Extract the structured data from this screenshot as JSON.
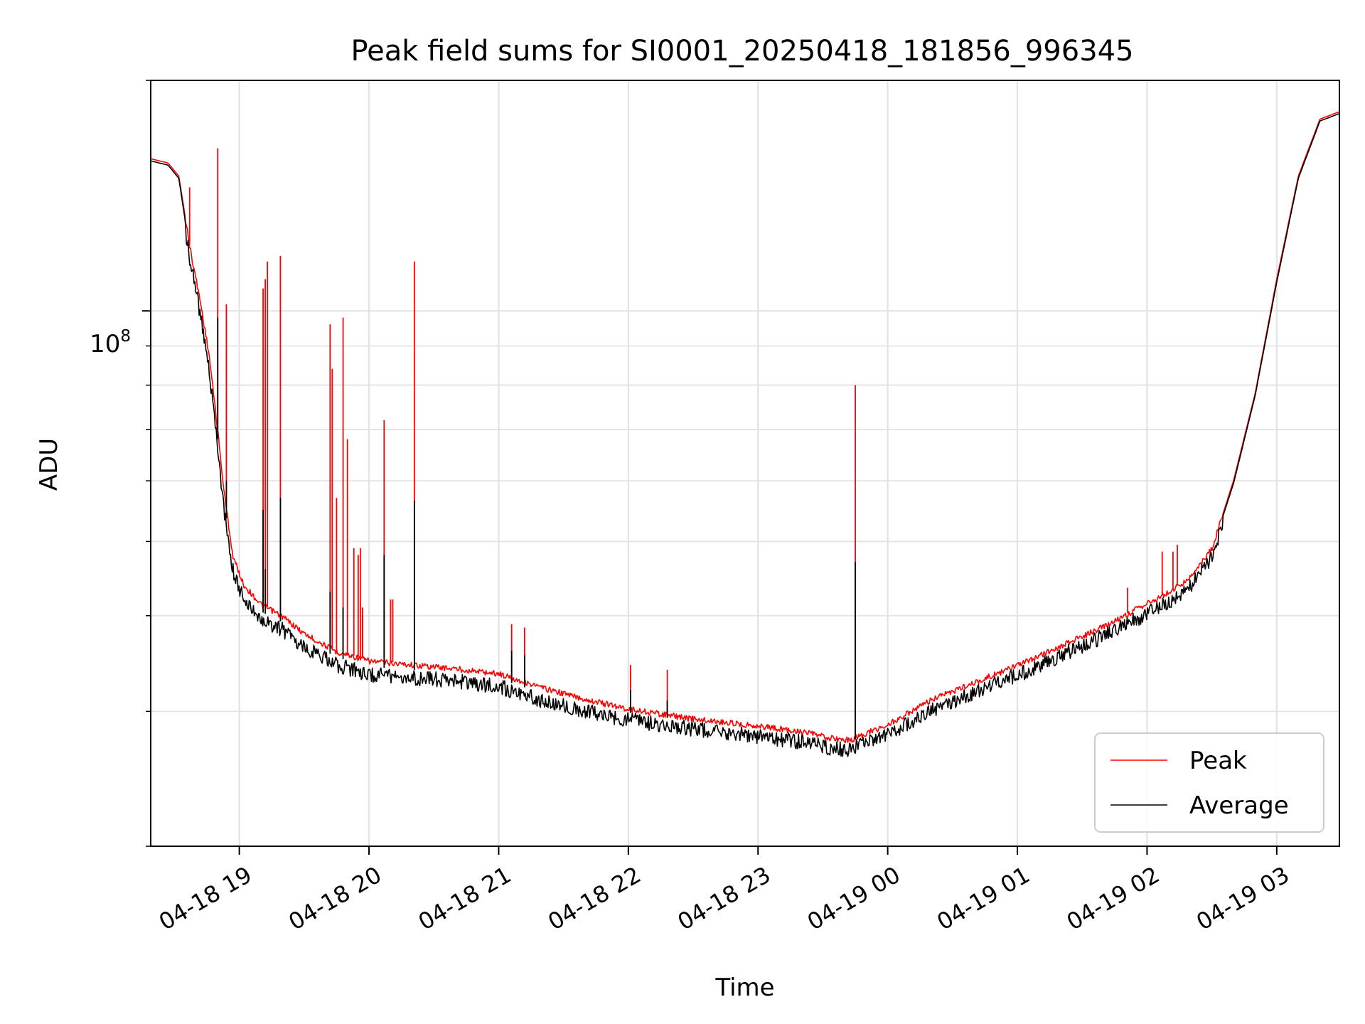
{
  "chart_data": {
    "type": "line",
    "title": "Peak field sums for SI0001_20250418_181856_996345",
    "xlabel": "Time",
    "ylabel": "ADU",
    "y_scale": "log",
    "ylim": [
      20000000,
      200000000
    ],
    "xlim": [
      "2025-04-18T18:19",
      "2025-04-19T03:29"
    ],
    "x_tick_labels": [
      "04-18 19",
      "04-18 20",
      "04-18 21",
      "04-18 22",
      "04-18 23",
      "04-19 00",
      "04-19 01",
      "04-19 02",
      "04-19 03"
    ],
    "x_tick_values": [
      "2025-04-18T19:00",
      "2025-04-18T20:00",
      "2025-04-18T21:00",
      "2025-04-18T22:00",
      "2025-04-18T23:00",
      "2025-04-19T00:00",
      "2025-04-19T01:00",
      "2025-04-19T02:00",
      "2025-04-19T03:00"
    ],
    "y_major_tick_label": "10",
    "y_major_tick_exponent": "8",
    "grid": true,
    "legend_position": "lower right",
    "series": [
      {
        "name": "Peak",
        "color": "#ff0000",
        "points": [
          [
            "2025-04-18T18:19",
            158000000
          ],
          [
            "2025-04-18T18:27",
            156000000
          ],
          [
            "2025-04-18T18:32",
            150000000
          ],
          [
            "2025-04-18T18:37",
            122000000
          ],
          [
            "2025-04-18T18:42",
            103000000
          ],
          [
            "2025-04-18T18:46",
            88000000
          ],
          [
            "2025-04-18T18:50",
            70000000
          ],
          [
            "2025-04-18T18:53",
            58000000
          ],
          [
            "2025-04-18T18:57",
            48000000
          ],
          [
            "2025-04-18T19:02",
            44000000
          ],
          [
            "2025-04-18T19:10",
            41500000
          ],
          [
            "2025-04-18T19:20",
            40000000
          ],
          [
            "2025-04-18T19:30",
            38000000
          ],
          [
            "2025-04-18T19:45",
            36000000
          ],
          [
            "2025-04-18T20:00",
            35000000
          ],
          [
            "2025-04-18T20:20",
            34600000
          ],
          [
            "2025-04-18T20:40",
            34200000
          ],
          [
            "2025-04-18T21:00",
            33700000
          ],
          [
            "2025-04-18T21:20",
            32300000
          ],
          [
            "2025-04-18T21:40",
            31200000
          ],
          [
            "2025-04-18T22:00",
            30300000
          ],
          [
            "2025-04-18T22:30",
            29400000
          ],
          [
            "2025-04-18T23:00",
            28800000
          ],
          [
            "2025-04-18T23:20",
            28300000
          ],
          [
            "2025-04-18T23:35",
            27700000
          ],
          [
            "2025-04-18T23:43",
            27600000
          ],
          [
            "2025-04-18T23:48",
            28000000
          ],
          [
            "2025-04-19T00:00",
            28900000
          ],
          [
            "2025-04-19T00:20",
            31100000
          ],
          [
            "2025-04-19T00:40",
            32800000
          ],
          [
            "2025-04-19T01:00",
            34500000
          ],
          [
            "2025-04-19T01:20",
            36600000
          ],
          [
            "2025-04-19T01:40",
            38800000
          ],
          [
            "2025-04-19T02:00",
            41600000
          ],
          [
            "2025-04-19T02:10",
            43000000
          ],
          [
            "2025-04-19T02:20",
            45000000
          ],
          [
            "2025-04-19T02:30",
            49000000
          ],
          [
            "2025-04-19T02:40",
            60000000
          ],
          [
            "2025-04-19T02:50",
            78000000
          ],
          [
            "2025-04-19T03:00",
            110000000
          ],
          [
            "2025-04-19T03:10",
            150000000
          ],
          [
            "2025-04-19T03:20",
            178000000
          ],
          [
            "2025-04-19T03:29",
            182000000
          ]
        ],
        "spikes": [
          [
            "2025-04-18T18:37",
            145000000
          ],
          [
            "2025-04-18T18:50",
            163000000
          ],
          [
            "2025-04-18T18:54",
            102000000
          ],
          [
            "2025-04-18T19:11",
            107000000
          ],
          [
            "2025-04-18T19:12",
            110000000
          ],
          [
            "2025-04-18T19:13",
            116000000
          ],
          [
            "2025-04-18T19:19",
            118000000
          ],
          [
            "2025-04-18T19:42",
            96000000
          ],
          [
            "2025-04-18T19:43",
            84000000
          ],
          [
            "2025-04-18T19:45",
            57000000
          ],
          [
            "2025-04-18T19:48",
            98000000
          ],
          [
            "2025-04-18T19:50",
            68000000
          ],
          [
            "2025-04-18T19:53",
            49000000
          ],
          [
            "2025-04-18T19:55",
            48000000
          ],
          [
            "2025-04-18T19:56",
            49000000
          ],
          [
            "2025-04-18T19:57",
            40000000
          ],
          [
            "2025-04-18T19:57",
            41000000
          ],
          [
            "2025-04-18T20:07",
            72000000
          ],
          [
            "2025-04-18T20:10",
            42000000
          ],
          [
            "2025-04-18T20:11",
            42000000
          ],
          [
            "2025-04-18T20:21",
            116000000
          ],
          [
            "2025-04-18T21:06",
            39000000
          ],
          [
            "2025-04-18T21:12",
            38600000
          ],
          [
            "2025-04-18T22:01",
            34500000
          ],
          [
            "2025-04-18T22:18",
            34000000
          ],
          [
            "2025-04-18T23:45",
            80000000
          ],
          [
            "2025-04-19T01:51",
            43500000
          ],
          [
            "2025-04-19T02:07",
            48500000
          ],
          [
            "2025-04-19T02:12",
            48500000
          ],
          [
            "2025-04-19T02:14",
            49500000
          ]
        ]
      },
      {
        "name": "Average",
        "color": "#000000",
        "points": [
          [
            "2025-04-18T18:19",
            157000000
          ],
          [
            "2025-04-18T18:27",
            155000000
          ],
          [
            "2025-04-18T18:32",
            149000000
          ],
          [
            "2025-04-18T18:37",
            120000000
          ],
          [
            "2025-04-18T18:42",
            101000000
          ],
          [
            "2025-04-18T18:46",
            86000000
          ],
          [
            "2025-04-18T18:50",
            68000000
          ],
          [
            "2025-04-18T18:53",
            56000000
          ],
          [
            "2025-04-18T18:57",
            47000000
          ],
          [
            "2025-04-18T19:02",
            43000000
          ],
          [
            "2025-04-18T19:10",
            40500000
          ],
          [
            "2025-04-18T19:20",
            39200000
          ],
          [
            "2025-04-18T19:30",
            37200000
          ],
          [
            "2025-04-18T19:45",
            35300000
          ],
          [
            "2025-04-18T20:00",
            34300000
          ],
          [
            "2025-04-18T20:20",
            34000000
          ],
          [
            "2025-04-18T20:40",
            33600000
          ],
          [
            "2025-04-18T21:00",
            33100000
          ],
          [
            "2025-04-18T21:20",
            31700000
          ],
          [
            "2025-04-18T21:40",
            30700000
          ],
          [
            "2025-04-18T22:00",
            29900000
          ],
          [
            "2025-04-18T22:30",
            29100000
          ],
          [
            "2025-04-18T23:00",
            28500000
          ],
          [
            "2025-04-18T23:20",
            28000000
          ],
          [
            "2025-04-18T23:35",
            27400000
          ],
          [
            "2025-04-18T23:43",
            27400000
          ],
          [
            "2025-04-18T23:48",
            27800000
          ],
          [
            "2025-04-19T00:00",
            28600000
          ],
          [
            "2025-04-19T00:20",
            30700000
          ],
          [
            "2025-04-19T00:40",
            32500000
          ],
          [
            "2025-04-19T01:00",
            34200000
          ],
          [
            "2025-04-19T01:20",
            36300000
          ],
          [
            "2025-04-19T01:40",
            38500000
          ],
          [
            "2025-04-19T02:00",
            41200000
          ],
          [
            "2025-04-19T02:10",
            42600000
          ],
          [
            "2025-04-19T02:20",
            44700000
          ],
          [
            "2025-04-19T02:30",
            48700000
          ],
          [
            "2025-04-19T02:40",
            59500000
          ],
          [
            "2025-04-19T02:50",
            77500000
          ],
          [
            "2025-04-19T03:00",
            109000000
          ],
          [
            "2025-04-19T03:10",
            149000000
          ],
          [
            "2025-04-19T03:20",
            177000000
          ],
          [
            "2025-04-19T03:29",
            181000000
          ]
        ],
        "spikes": [
          [
            "2025-04-18T18:50",
            98000000
          ],
          [
            "2025-04-18T18:54",
            60000000
          ],
          [
            "2025-04-18T19:11",
            55000000
          ],
          [
            "2025-04-18T19:12",
            46000000
          ],
          [
            "2025-04-18T19:19",
            57000000
          ],
          [
            "2025-04-18T19:42",
            43000000
          ],
          [
            "2025-04-18T19:48",
            41000000
          ],
          [
            "2025-04-18T20:07",
            48000000
          ],
          [
            "2025-04-18T20:21",
            56500000
          ],
          [
            "2025-04-18T21:06",
            36000000
          ],
          [
            "2025-04-18T21:12",
            35500000
          ],
          [
            "2025-04-18T22:01",
            32000000
          ],
          [
            "2025-04-18T22:18",
            31000000
          ],
          [
            "2025-04-18T23:45",
            47000000
          ]
        ]
      }
    ]
  }
}
